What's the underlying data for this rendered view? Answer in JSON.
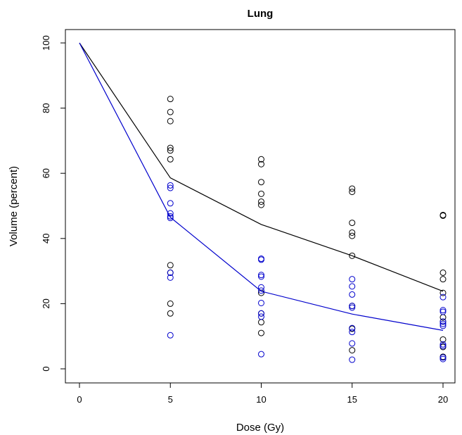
{
  "chart_data": {
    "type": "scatter",
    "title": "Lung",
    "xlabel": "Dose (Gy)",
    "ylabel": "Volume (percent)",
    "xlim": [
      0,
      20
    ],
    "ylim": [
      0,
      100
    ],
    "x_ticks": [
      "0",
      "5",
      "10",
      "15",
      "20"
    ],
    "y_ticks": [
      "0",
      "20",
      "40",
      "60",
      "80",
      "100"
    ],
    "grid": false,
    "series": [
      {
        "color": "#000000",
        "points": [
          [
            5,
            82.8
          ],
          [
            5,
            78.8
          ],
          [
            5,
            76.0
          ],
          [
            5,
            67.8
          ],
          [
            5,
            67.0
          ],
          [
            5,
            64.3
          ],
          [
            5,
            31.8
          ],
          [
            5,
            29.5
          ],
          [
            5,
            20.0
          ],
          [
            5,
            17.0
          ],
          [
            10,
            64.3
          ],
          [
            10,
            62.8
          ],
          [
            10,
            57.3
          ],
          [
            10,
            53.7
          ],
          [
            10,
            51.3
          ],
          [
            10,
            50.3
          ],
          [
            10,
            23.3
          ],
          [
            10,
            17.0
          ],
          [
            10,
            14.3
          ],
          [
            10,
            11.0
          ],
          [
            15,
            55.3
          ],
          [
            15,
            54.3
          ],
          [
            15,
            44.8
          ],
          [
            15,
            41.8
          ],
          [
            15,
            40.8
          ],
          [
            15,
            34.7
          ],
          [
            15,
            19.3
          ],
          [
            15,
            12.3
          ],
          [
            15,
            5.7
          ],
          [
            20,
            47.2
          ],
          [
            20,
            47.0
          ],
          [
            20,
            29.5
          ],
          [
            20,
            27.5
          ],
          [
            20,
            23.3
          ],
          [
            20,
            15.8
          ],
          [
            20,
            14.5
          ],
          [
            20,
            9.0
          ],
          [
            20,
            6.7
          ],
          [
            20,
            3.7
          ]
        ],
        "line": [
          [
            0,
            100
          ],
          [
            5,
            58.6
          ],
          [
            10,
            44.3
          ],
          [
            15,
            34.7
          ],
          [
            20,
            23.8
          ]
        ]
      },
      {
        "color": "#0000cc",
        "points": [
          [
            5,
            56.3
          ],
          [
            5,
            55.5
          ],
          [
            5,
            50.8
          ],
          [
            5,
            47.7
          ],
          [
            5,
            46.8
          ],
          [
            5,
            46.3
          ],
          [
            5,
            29.5
          ],
          [
            5,
            28.0
          ],
          [
            5,
            10.3
          ],
          [
            10,
            33.8
          ],
          [
            10,
            33.5
          ],
          [
            10,
            28.8
          ],
          [
            10,
            28.3
          ],
          [
            10,
            25.0
          ],
          [
            10,
            24.0
          ],
          [
            10,
            20.2
          ],
          [
            10,
            17.0
          ],
          [
            10,
            16.0
          ],
          [
            10,
            4.5
          ],
          [
            15,
            27.5
          ],
          [
            15,
            25.3
          ],
          [
            15,
            22.8
          ],
          [
            15,
            19.3
          ],
          [
            15,
            18.8
          ],
          [
            15,
            12.5
          ],
          [
            15,
            11.3
          ],
          [
            15,
            7.8
          ],
          [
            15,
            2.8
          ],
          [
            20,
            22.0
          ],
          [
            20,
            18.0
          ],
          [
            20,
            17.5
          ],
          [
            20,
            14.5
          ],
          [
            20,
            13.8
          ],
          [
            20,
            13.2
          ],
          [
            20,
            7.5
          ],
          [
            20,
            7.0
          ],
          [
            20,
            3.5
          ],
          [
            20,
            3.0
          ]
        ],
        "line": [
          [
            0,
            100
          ],
          [
            5,
            46.5
          ],
          [
            10,
            23.8
          ],
          [
            15,
            16.8
          ],
          [
            20,
            11.8
          ]
        ]
      }
    ]
  }
}
